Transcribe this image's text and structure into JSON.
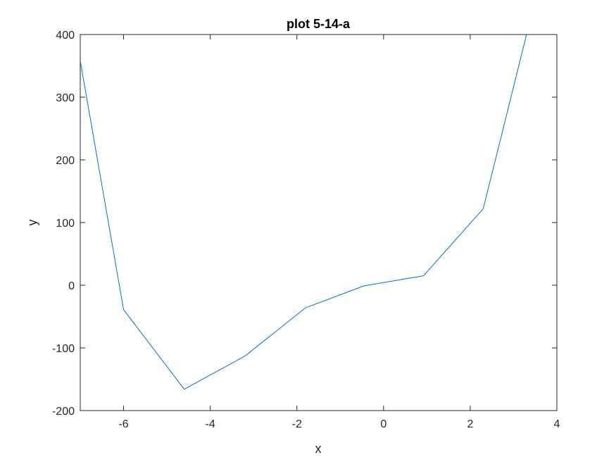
{
  "chart_data": {
    "type": "line",
    "title": "plot 5-14-a",
    "xlabel": "x",
    "ylabel": "y",
    "xlim": [
      -7,
      4
    ],
    "ylim": [
      -200,
      400
    ],
    "xticks": [
      -6,
      -4,
      -2,
      0,
      2,
      4
    ],
    "yticks": [
      -200,
      -100,
      0,
      100,
      200,
      300,
      400
    ],
    "grid": false,
    "series": [
      {
        "color": "#0072BD",
        "x": [
          -7,
          -6,
          -4.6,
          -3.2,
          -1.8,
          -0.45,
          0.92,
          2.3,
          3.3
        ],
        "y": [
          358,
          -39,
          -166,
          -113,
          -36,
          -1,
          15,
          122,
          400
        ]
      }
    ]
  }
}
